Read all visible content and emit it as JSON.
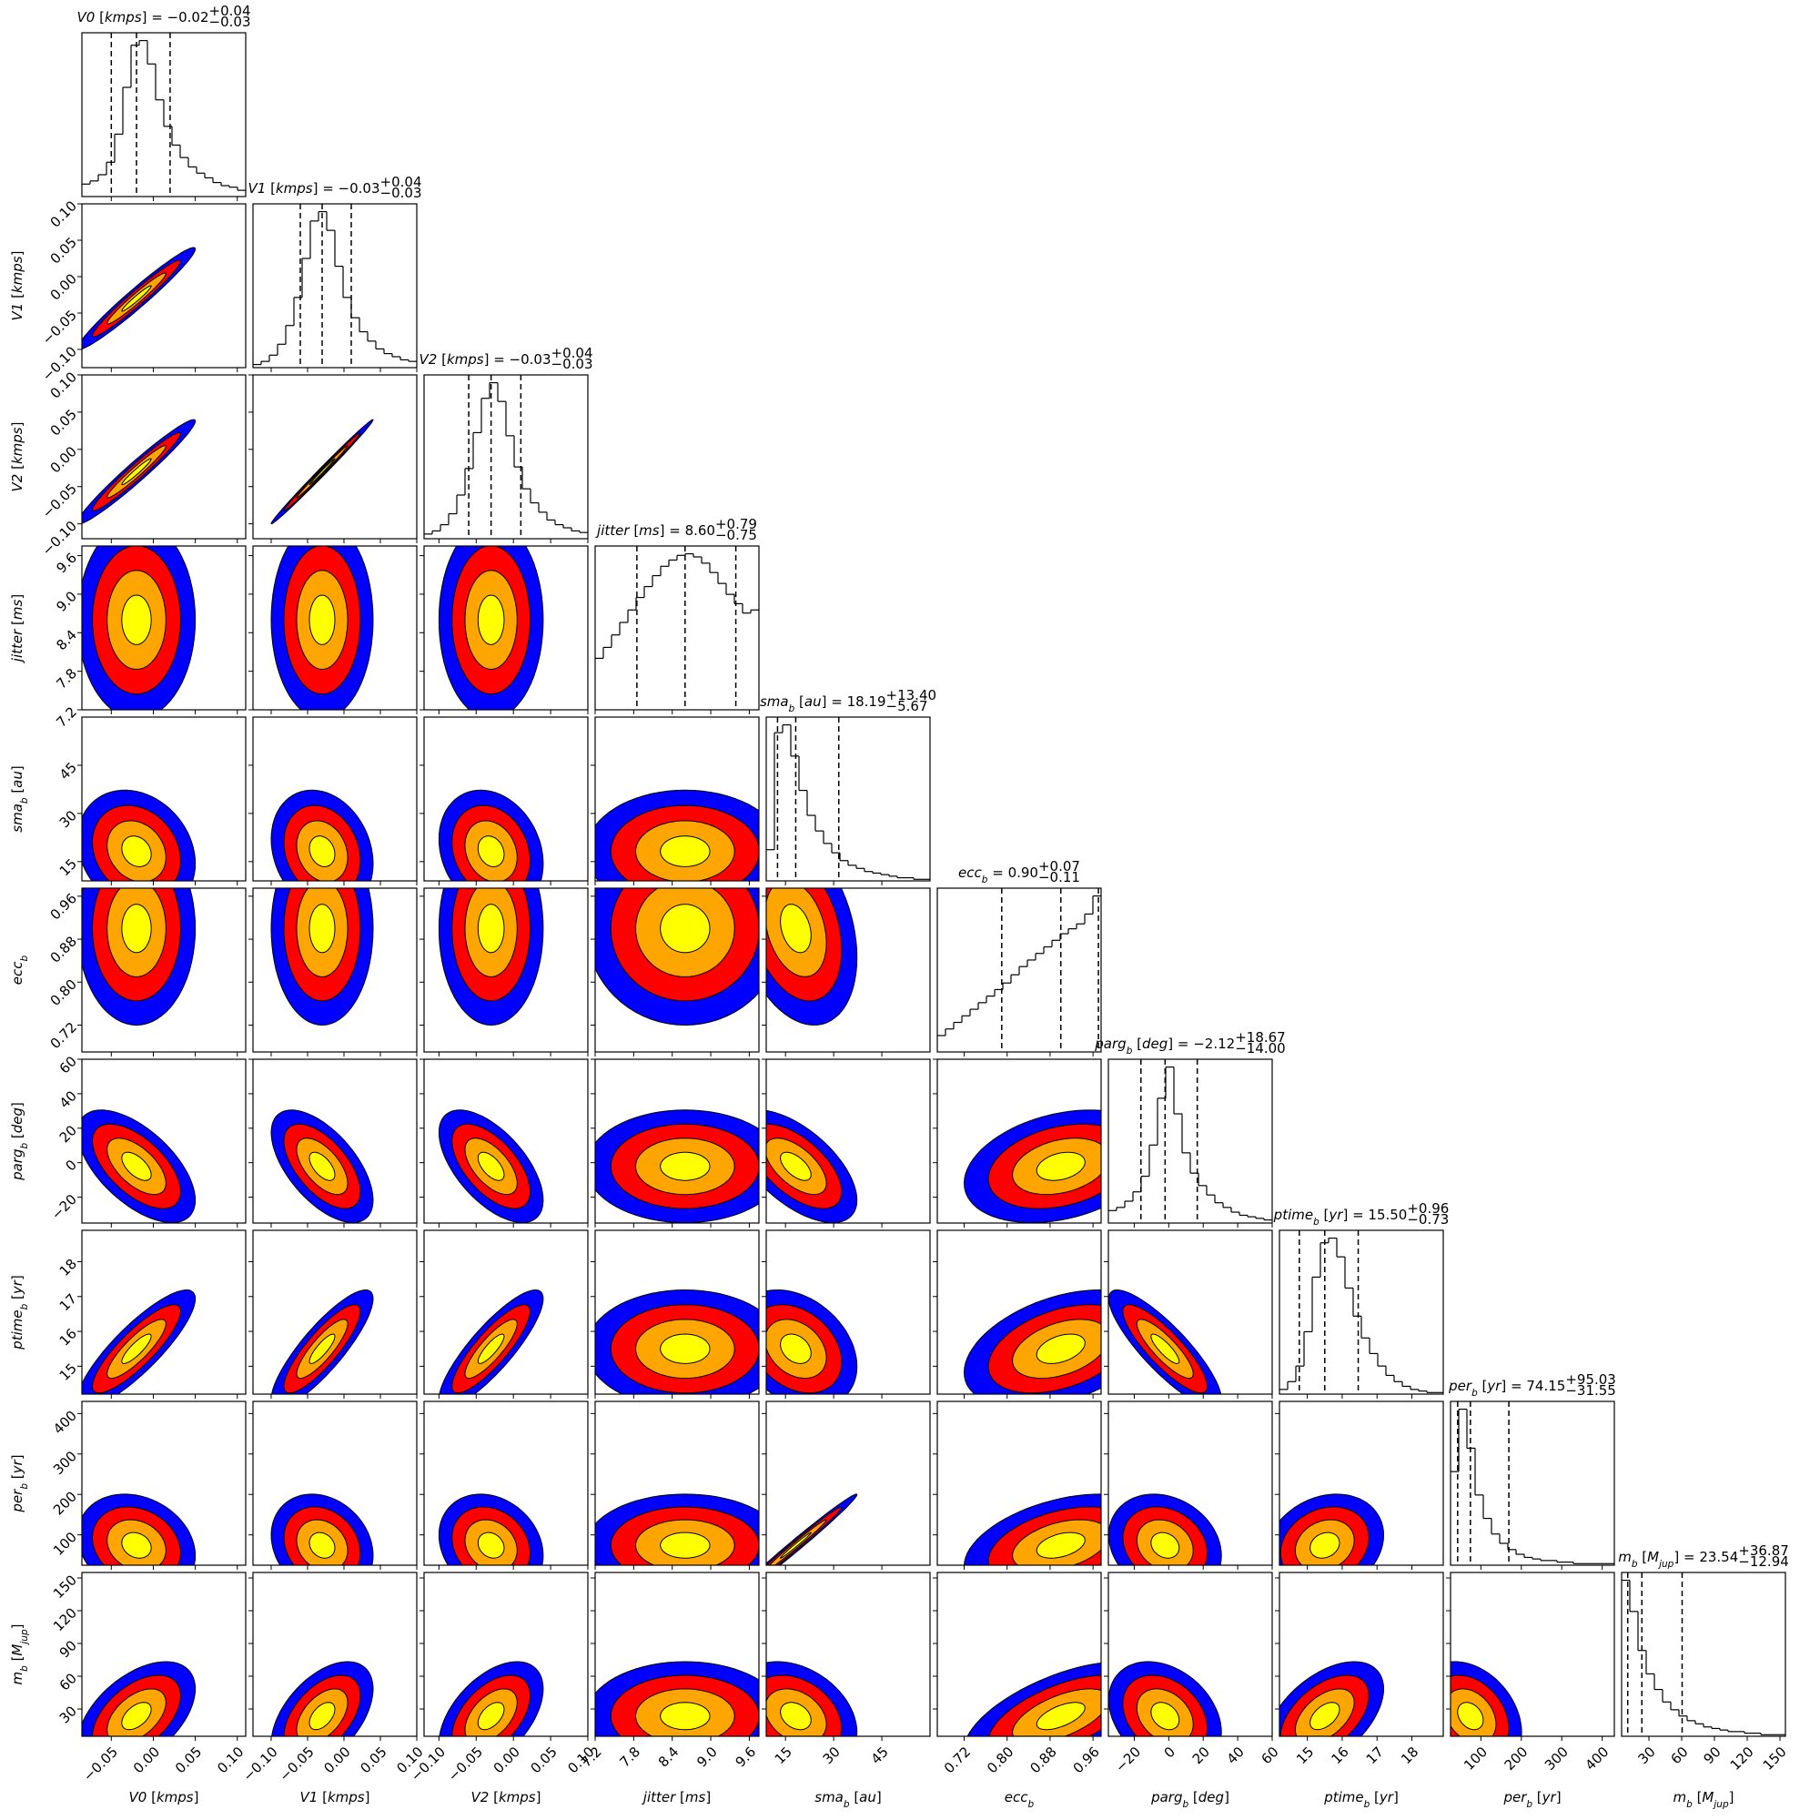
{
  "chart_data": {
    "type": "corner",
    "title_separator": " = ",
    "contour_colors": [
      "#0000ff",
      "#ff0000",
      "#ffa500",
      "#ffff00"
    ],
    "params": [
      {
        "label": [
          {
            "t": "V0",
            "s": "italic"
          },
          {
            "t": " [",
            "s": "normal"
          },
          {
            "t": "kmps",
            "s": "italic"
          },
          {
            "t": "]",
            "s": "normal"
          }
        ],
        "lim": [
          -0.085,
          0.11
        ],
        "ticks": [
          {
            "value": -0.05,
            "label": "−0.05"
          },
          {
            "value": 0,
            "label": "0.00"
          },
          0.05,
          {
            "value": 0.1,
            "label": "0.10"
          }
        ],
        "median": {
          "value": -0.02,
          "label": "−0.02"
        },
        "plus": {
          "value": 0.04,
          "label": "+0.04"
        },
        "minus": {
          "value": 0.03,
          "label": "−0.03"
        },
        "hist": [
          8,
          10,
          14,
          22,
          40,
          70,
          97,
          100,
          85,
          62,
          45,
          33,
          25,
          19,
          15,
          12,
          9,
          7,
          6,
          4
        ]
      },
      {
        "label": [
          {
            "t": "V1",
            "s": "italic"
          },
          {
            "t": " [",
            "s": "normal"
          },
          {
            "t": "kmps",
            "s": "italic"
          },
          {
            "t": "]",
            "s": "normal"
          }
        ],
        "lim": [
          -0.125,
          0.1
        ],
        "ticks": [
          {
            "value": -0.1,
            "label": "−0.10"
          },
          {
            "value": -0.05,
            "label": "−0.05"
          },
          {
            "value": 0,
            "label": "0.00"
          },
          0.05,
          {
            "value": 0.1,
            "label": "0.10"
          }
        ],
        "median": {
          "value": -0.03,
          "label": "−0.03"
        },
        "plus": {
          "value": 0.04,
          "label": "+0.04"
        },
        "minus": {
          "value": 0.03,
          "label": "−0.03"
        },
        "hist": [
          2,
          4,
          8,
          15,
          27,
          45,
          70,
          94,
          100,
          88,
          65,
          45,
          32,
          23,
          17,
          12,
          9,
          7,
          5,
          4
        ]
      },
      {
        "label": [
          {
            "t": "V2",
            "s": "italic"
          },
          {
            "t": " [",
            "s": "normal"
          },
          {
            "t": "kmps",
            "s": "italic"
          },
          {
            "t": "]",
            "s": "normal"
          }
        ],
        "lim": [
          -0.12,
          0.1
        ],
        "ticks": [
          {
            "value": -0.1,
            "label": "−0.10"
          },
          {
            "value": -0.05,
            "label": "−0.05"
          },
          {
            "value": 0,
            "label": "0.00"
          },
          0.05,
          {
            "value": 0.1,
            "label": "0.10"
          }
        ],
        "median": {
          "value": -0.03,
          "label": "−0.03"
        },
        "plus": {
          "value": 0.04,
          "label": "+0.04"
        },
        "minus": {
          "value": 0.03,
          "label": "−0.03"
        },
        "hist": [
          3,
          5,
          9,
          16,
          28,
          45,
          68,
          90,
          100,
          88,
          66,
          46,
          32,
          23,
          17,
          12,
          9,
          7,
          5,
          4
        ]
      },
      {
        "label": [
          {
            "t": "jitter",
            "s": "italic"
          },
          {
            "t": " [",
            "s": "normal"
          },
          {
            "t": "ms",
            "s": "italic"
          },
          {
            "t": "]",
            "s": "normal"
          }
        ],
        "lim": [
          7.2,
          9.75
        ],
        "ticks": [
          7.2,
          7.8,
          8.4,
          {
            "value": 9,
            "label": "9.0"
          },
          9.6
        ],
        "median": {
          "value": 8.6,
          "label": "8.60"
        },
        "plus": {
          "value": 0.79,
          "label": "+0.79"
        },
        "minus": {
          "value": 0.75,
          "label": "−0.75"
        },
        "hist": [
          33,
          40,
          48,
          56,
          64,
          72,
          79,
          86,
          92,
          96,
          99,
          100,
          98,
          94,
          88,
          81,
          74,
          68,
          62,
          64
        ]
      },
      {
        "label": [
          {
            "t": "sma",
            "s": "italic"
          },
          {
            "t": "b",
            "s": "sub"
          },
          {
            "t": " [",
            "s": "normal"
          },
          {
            "t": "au",
            "s": "italic"
          },
          {
            "t": "]",
            "s": "normal"
          }
        ],
        "lim": [
          9,
          60
        ],
        "ticks": [
          15,
          30,
          45
        ],
        "median": 18.19,
        "plus": {
          "value": 13.4,
          "label": "+13.40"
        },
        "minus": {
          "value": 5.67,
          "label": "−5.67"
        },
        "hist": [
          20,
          95,
          100,
          80,
          58,
          42,
          32,
          24,
          18,
          13,
          10,
          8,
          6,
          5,
          4,
          3,
          2,
          2,
          1,
          1
        ]
      },
      {
        "label": [
          {
            "t": "ecc",
            "s": "italic"
          },
          {
            "t": "b",
            "s": "sub"
          }
        ],
        "lim": [
          0.67,
          0.975
        ],
        "ticks": [
          0.72,
          {
            "value": 0.8,
            "label": "0.80"
          },
          0.88,
          0.96
        ],
        "median": {
          "value": 0.9,
          "label": "0.90"
        },
        "plus": {
          "value": 0.07,
          "label": "+0.07"
        },
        "minus": {
          "value": 0.11,
          "label": "−0.11"
        },
        "hist": [
          10,
          14,
          18,
          22,
          26,
          30,
          34,
          38,
          42,
          47,
          52,
          56,
          60,
          64,
          68,
          72,
          75,
          78,
          84,
          95
        ]
      },
      {
        "label": [
          {
            "t": "parg",
            "s": "italic"
          },
          {
            "t": "b",
            "s": "sub"
          },
          {
            "t": " [",
            "s": "normal"
          },
          {
            "t": "deg",
            "s": "italic"
          },
          {
            "t": "]",
            "s": "normal"
          }
        ],
        "lim": [
          -35,
          60
        ],
        "ticks": [
          {
            "value": -20,
            "label": "−20"
          },
          0,
          20,
          40,
          60
        ],
        "median": {
          "value": -2.12,
          "label": "−2.12"
        },
        "plus": {
          "value": 18.67,
          "label": "+18.67"
        },
        "minus": {
          "value": 14,
          "label": "−14.00"
        },
        "hist": [
          8,
          10,
          14,
          20,
          30,
          50,
          80,
          100,
          70,
          45,
          32,
          24,
          18,
          13,
          10,
          7,
          5,
          4,
          3,
          2
        ]
      },
      {
        "label": [
          {
            "t": "ptime",
            "s": "italic"
          },
          {
            "t": "b",
            "s": "sub"
          },
          {
            "t": " [",
            "s": "normal"
          },
          {
            "t": "yr",
            "s": "italic"
          },
          {
            "t": "]",
            "s": "normal"
          }
        ],
        "lim": [
          14.2,
          18.9
        ],
        "ticks": [
          15,
          16,
          17,
          18
        ],
        "median": {
          "value": 15.5,
          "label": "15.50"
        },
        "plus": {
          "value": 0.96,
          "label": "+0.96"
        },
        "minus": {
          "value": 0.73,
          "label": "−0.73"
        },
        "hist": [
          3,
          8,
          18,
          40,
          75,
          97,
          100,
          88,
          68,
          50,
          36,
          26,
          18,
          12,
          8,
          5,
          3,
          2,
          1,
          1
        ]
      },
      {
        "label": [
          {
            "t": "per",
            "s": "italic"
          },
          {
            "t": "b",
            "s": "sub"
          },
          {
            "t": " [",
            "s": "normal"
          },
          {
            "t": "yr",
            "s": "italic"
          },
          {
            "t": "]",
            "s": "normal"
          }
        ],
        "lim": [
          25,
          430
        ],
        "ticks": [
          100,
          200,
          300,
          400
        ],
        "median": 74.15,
        "plus": {
          "value": 95.03,
          "label": "+95.03"
        },
        "minus": {
          "value": 31.55,
          "label": "−31.55"
        },
        "hist": [
          60,
          100,
          75,
          45,
          30,
          20,
          14,
          10,
          7,
          5,
          4,
          3,
          3,
          2,
          2,
          1,
          1,
          1,
          1,
          1
        ]
      },
      {
        "label": [
          {
            "t": "m",
            "s": "italic"
          },
          {
            "t": "b",
            "s": "sub"
          },
          {
            "t": " [",
            "s": "normal"
          },
          {
            "t": "M",
            "s": "italic"
          },
          {
            "t": "jup",
            "s": "sub"
          },
          {
            "t": "]",
            "s": "normal"
          }
        ],
        "lim": [
          5,
          155
        ],
        "ticks": [
          30,
          60,
          90,
          120,
          150
        ],
        "median": 23.54,
        "plus": {
          "value": 36.87,
          "label": "+36.87"
        },
        "minus": {
          "value": 12.94,
          "label": "−12.94"
        },
        "hist": [
          100,
          80,
          55,
          40,
          30,
          22,
          17,
          13,
          10,
          8,
          6,
          5,
          4,
          3,
          3,
          2,
          2,
          1,
          1,
          1
        ]
      }
    ],
    "correlations": [
      [],
      [
        0.97
      ],
      [
        0.97,
        0.995
      ],
      [
        0,
        0,
        0
      ],
      [
        -0.2,
        -0.2,
        -0.2,
        0
      ],
      [
        0,
        0,
        0,
        0,
        -0.3
      ],
      [
        -0.6,
        -0.6,
        -0.6,
        0,
        -0.6,
        0.3
      ],
      [
        0.85,
        0.85,
        0.85,
        0,
        -0.3,
        0.4,
        -0.85
      ],
      [
        -0.2,
        -0.2,
        -0.2,
        0,
        0.99,
        0.4,
        -0.2,
        0.2
      ],
      [
        0.5,
        0.5,
        0.5,
        0,
        -0.3,
        0.6,
        -0.3,
        0.5,
        -0.3
      ]
    ]
  }
}
